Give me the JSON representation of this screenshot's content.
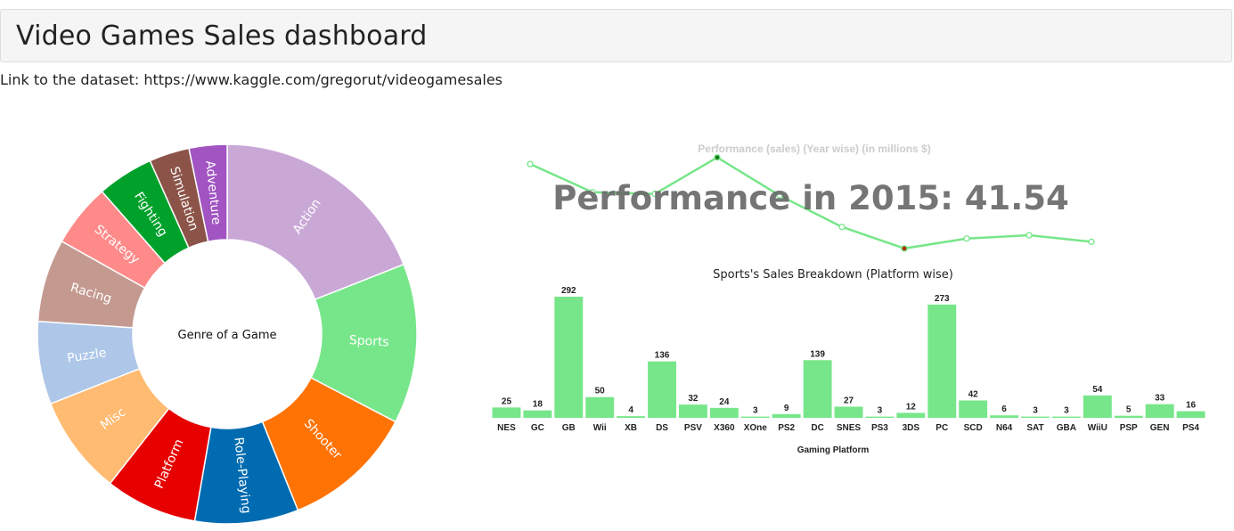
{
  "header": {
    "title": "Video Games Sales dashboard"
  },
  "dataset_link": "Link to the dataset: https://www.kaggle.com/gregorut/videogamesales",
  "chart_data": [
    {
      "type": "pie",
      "variant": "donut",
      "center_label": "Genre of a Game",
      "slices": [
        {
          "label": "Action",
          "value": 19.4,
          "color": "#c9a8d6"
        },
        {
          "label": "Sports",
          "value": 13.9,
          "color": "#77e68a"
        },
        {
          "label": "Shooter",
          "value": 11.5,
          "color": "#ff7305"
        },
        {
          "label": "Role-Playing",
          "value": 9.0,
          "color": "#006bb0"
        },
        {
          "label": "Platform",
          "value": 8.0,
          "color": "#e60000"
        },
        {
          "label": "Misc",
          "value": 8.6,
          "color": "#ffbb71"
        },
        {
          "label": "Puzzle",
          "value": 7.2,
          "color": "#aec7e8"
        },
        {
          "label": "Racing",
          "value": 7.2,
          "color": "#c49a90"
        },
        {
          "label": "Strategy",
          "value": 5.5,
          "color": "#ff8a8a"
        },
        {
          "label": "Fighting",
          "value": 4.9,
          "color": "#00a12b"
        },
        {
          "label": "Simulation",
          "value": 3.5,
          "color": "#8c5449"
        },
        {
          "label": "Adventure",
          "value": 3.3,
          "color": "#a154c2"
        }
      ]
    },
    {
      "type": "line",
      "title": "Performance (sales) (Year wise) (in millions $)",
      "overlay_text": "Performance in 2015: 41.54",
      "line_color": "#77e68a",
      "values": [
        82,
        65,
        64,
        86,
        63,
        44,
        31,
        37,
        39,
        35
      ],
      "highlight": [
        {
          "index": 3,
          "color": "#1a7a1a"
        },
        {
          "index": 6,
          "color": "#b52a00"
        }
      ],
      "ylim": [
        25,
        95
      ]
    },
    {
      "type": "bar",
      "title": "Sports's Sales Breakdown (Platform wise)",
      "xlabel": "Gaming Platform",
      "bar_color": "#77e68a",
      "categories": [
        "NES",
        "GC",
        "GB",
        "Wii",
        "XB",
        "DS",
        "PSV",
        "X360",
        "XOne",
        "PS2",
        "DC",
        "SNES",
        "PS3",
        "3DS",
        "PC",
        "SCD",
        "N64",
        "SAT",
        "GBA",
        "WiiU",
        "PSP",
        "GEN",
        "PS4"
      ],
      "values": [
        25,
        18,
        292,
        50,
        4,
        136,
        32,
        24,
        3,
        9,
        139,
        27,
        3,
        12,
        273,
        42,
        6,
        3,
        3,
        54,
        5,
        33,
        16
      ],
      "ylim": [
        0,
        292
      ]
    }
  ]
}
